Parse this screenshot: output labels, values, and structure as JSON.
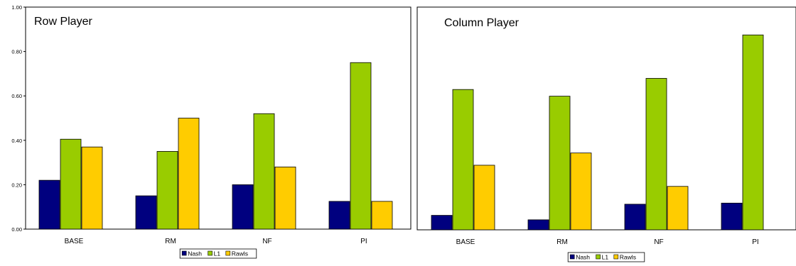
{
  "chart_data": [
    {
      "type": "bar",
      "title": "Row Player",
      "categories": [
        "BASE",
        "RM",
        "NF",
        "PI"
      ],
      "series": [
        {
          "name": "Nash",
          "values": [
            0.22,
            0.15,
            0.2,
            0.125
          ]
        },
        {
          "name": "L1",
          "values": [
            0.405,
            0.35,
            0.52,
            0.75
          ]
        },
        {
          "name": "Rawls",
          "values": [
            0.37,
            0.5,
            0.28,
            0.125
          ]
        }
      ],
      "yticks": [
        "0.00",
        "0.20",
        "0.40",
        "0.60",
        "0.80",
        "1.00"
      ],
      "ylim": [
        0,
        1
      ],
      "legend": "bottom",
      "grid": false
    },
    {
      "type": "bar",
      "title": "Column Player",
      "categories": [
        "BASE",
        "RM",
        "NF",
        "PI"
      ],
      "series": [
        {
          "name": "Nash",
          "values": [
            0.065,
            0.045,
            0.115,
            0.12
          ]
        },
        {
          "name": "L1",
          "values": [
            0.63,
            0.6,
            0.68,
            0.875
          ]
        },
        {
          "name": "Rawls",
          "values": [
            0.29,
            0.345,
            0.195,
            0
          ]
        }
      ],
      "ylim": [
        0,
        1
      ],
      "legend": "bottom",
      "grid": false
    }
  ],
  "colors": {
    "Nash": "#00007f",
    "L1": "#99cc00",
    "Rawls": "#ffcc00"
  }
}
